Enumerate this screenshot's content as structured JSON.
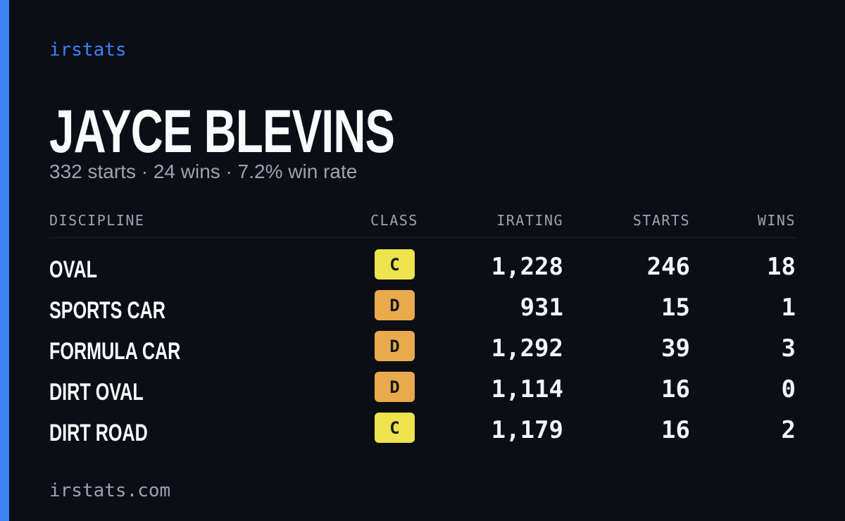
{
  "brand": "irstats",
  "driver": {
    "name": "JAYCE BLEVINS",
    "summary": "332 starts · 24 wins · 7.2% win rate"
  },
  "table": {
    "headers": [
      "DISCIPLINE",
      "CLASS",
      "IRATING",
      "STARTS",
      "WINS"
    ],
    "rows": [
      {
        "discipline": "OVAL",
        "class": "C",
        "class_color": "#ece34d",
        "irating": "1,228",
        "starts": "246",
        "wins": "18"
      },
      {
        "discipline": "SPORTS CAR",
        "class": "D",
        "class_color": "#e9aa4d",
        "irating": "931",
        "starts": "15",
        "wins": "1"
      },
      {
        "discipline": "FORMULA CAR",
        "class": "D",
        "class_color": "#e9aa4d",
        "irating": "1,292",
        "starts": "39",
        "wins": "3"
      },
      {
        "discipline": "DIRT OVAL",
        "class": "D",
        "class_color": "#e9aa4d",
        "irating": "1,114",
        "starts": "16",
        "wins": "0"
      },
      {
        "discipline": "DIRT ROAD",
        "class": "C",
        "class_color": "#ece34d",
        "irating": "1,179",
        "starts": "16",
        "wins": "2"
      }
    ]
  },
  "footer": "irstats.com"
}
